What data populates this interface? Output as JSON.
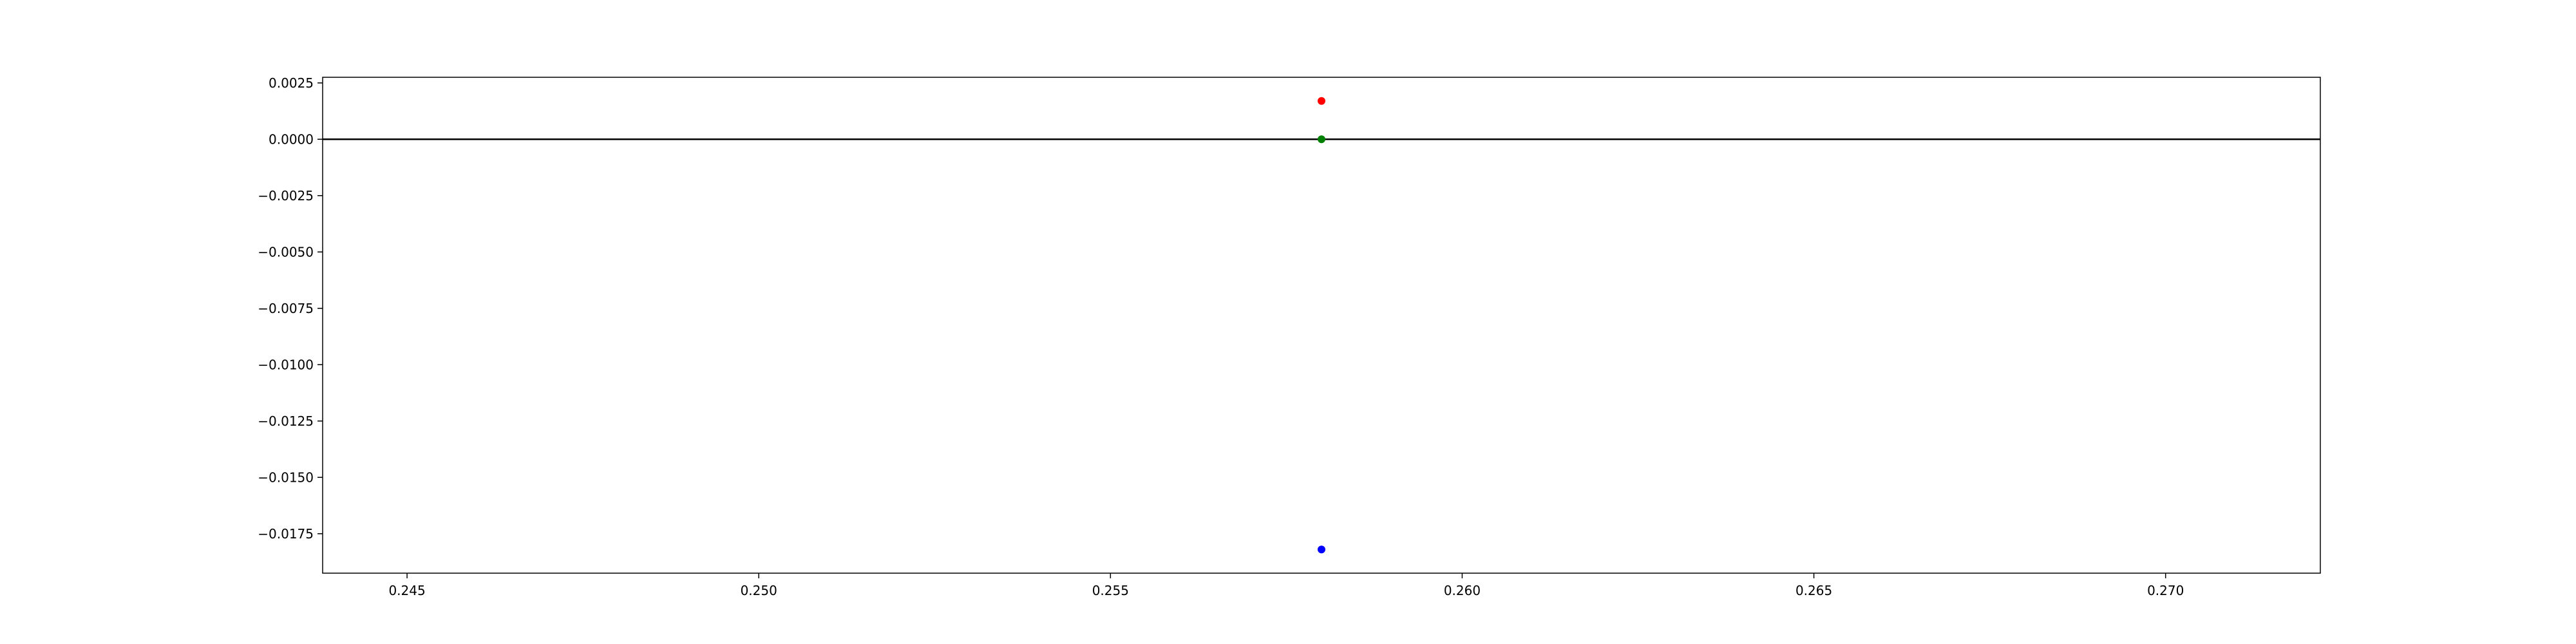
{
  "chart_data": {
    "type": "scatter",
    "title": "",
    "xlabel": "",
    "ylabel": "",
    "xlim": [
      0.2438,
      0.2722
    ],
    "ylim": [
      -0.01925,
      0.00275
    ],
    "xticks": [
      {
        "value": 0.245,
        "label": "0.245"
      },
      {
        "value": 0.25,
        "label": "0.250"
      },
      {
        "value": 0.255,
        "label": "0.255"
      },
      {
        "value": 0.26,
        "label": "0.260"
      },
      {
        "value": 0.265,
        "label": "0.265"
      },
      {
        "value": 0.27,
        "label": "0.270"
      }
    ],
    "yticks": [
      {
        "value": 0.0025,
        "label": "0.0025"
      },
      {
        "value": 0.0,
        "label": "0.0000"
      },
      {
        "value": -0.0025,
        "label": "−0.0025"
      },
      {
        "value": -0.005,
        "label": "−0.0050"
      },
      {
        "value": -0.0075,
        "label": "−0.0075"
      },
      {
        "value": -0.01,
        "label": "−0.0100"
      },
      {
        "value": -0.0125,
        "label": "−0.0125"
      },
      {
        "value": -0.015,
        "label": "−0.0150"
      },
      {
        "value": -0.0175,
        "label": "−0.0175"
      }
    ],
    "hline": {
      "y": 0,
      "color": "#000000"
    },
    "points": [
      {
        "x": 0.258,
        "y": 0.0017,
        "color": "#ff0000"
      },
      {
        "x": 0.258,
        "y": 0.0,
        "color": "#008000"
      },
      {
        "x": 0.258,
        "y": -0.0182,
        "color": "#0000ff"
      }
    ],
    "grid": false,
    "legend": "none"
  }
}
